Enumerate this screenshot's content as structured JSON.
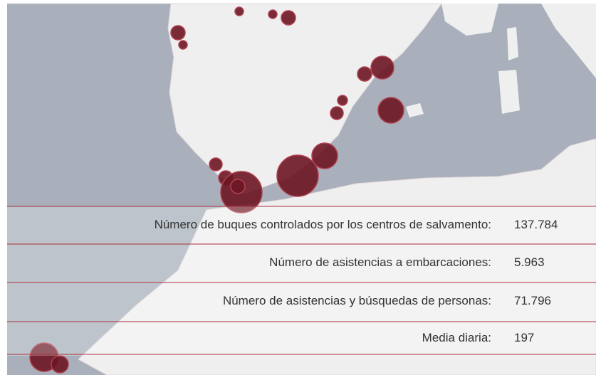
{
  "stats": [
    {
      "label": "Número de buques controlados por los centros de salvamento:",
      "value": "137.784"
    },
    {
      "label": "Número de asistencias a embarcaciones:",
      "value": "5.963"
    },
    {
      "label": "Número de asistencias y búsquedas de personas:",
      "value": "71.796"
    },
    {
      "label": "Media diaria:",
      "value": "197"
    }
  ]
}
